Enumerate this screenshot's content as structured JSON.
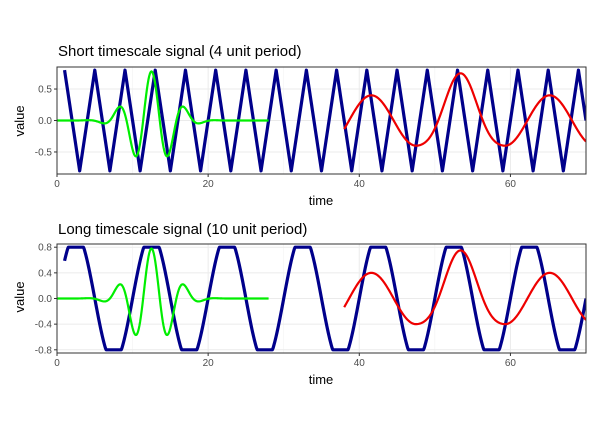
{
  "chart_data": [
    {
      "type": "line",
      "title": "Short timescale signal (4 unit period)",
      "xlabel": "time",
      "ylabel": "value",
      "xlim": [
        0,
        70
      ],
      "ylim": [
        -0.85,
        0.85
      ],
      "xticks": [
        0,
        20,
        40,
        60
      ],
      "yticks": [
        -0.5,
        0.0,
        0.5
      ],
      "xtick_labels": [
        "0",
        "20",
        "40",
        "60"
      ],
      "ytick_labels": [
        "-0.5",
        "0.0",
        "0.5"
      ],
      "grid": true,
      "series": [
        {
          "color": "#00008b",
          "kind": "triangle",
          "period": 4,
          "amplitude": 0.8,
          "x_start": 1,
          "x_end": 70,
          "peak_at": 1
        },
        {
          "color": "#00ee00",
          "kind": "wave-packet",
          "center": 12.5,
          "period": 4.4,
          "amplitude": 0.78,
          "width": 3.8,
          "x_start": 0,
          "x_end": 28
        },
        {
          "color": "#ee0000",
          "kind": "sine",
          "period": 11.8,
          "amplitude": 0.4,
          "x_start": 38,
          "x_end": 70,
          "peak_at": 41.6,
          "large_peak_at": 53.4,
          "large_amplitude": 0.75
        }
      ]
    },
    {
      "type": "line",
      "title": "Long timescale signal (10 unit period)",
      "xlabel": "time",
      "ylabel": "value",
      "xlim": [
        0,
        70
      ],
      "ylim": [
        -0.85,
        0.85
      ],
      "xticks": [
        0,
        20,
        40,
        60
      ],
      "yticks": [
        -0.8,
        -0.4,
        0.0,
        0.4,
        0.8
      ],
      "xtick_labels": [
        "0",
        "20",
        "40",
        "60"
      ],
      "ytick_labels": [
        "-0.8",
        "-0.4",
        "0.0",
        "0.4",
        "0.8"
      ],
      "grid": true,
      "series": [
        {
          "color": "#00008b",
          "kind": "clipped-sine",
          "period": 10,
          "amplitude": 0.8,
          "x_start": 1,
          "x_end": 70,
          "peak_at": 2.5
        },
        {
          "color": "#00ee00",
          "kind": "wave-packet",
          "center": 12.5,
          "period": 4.4,
          "amplitude": 0.78,
          "width": 3.8,
          "x_start": 0,
          "x_end": 28
        },
        {
          "color": "#ee0000",
          "kind": "sine",
          "period": 11.8,
          "amplitude": 0.4,
          "x_start": 38,
          "x_end": 70,
          "peak_at": 41.6,
          "large_peak_at": 53.4,
          "large_amplitude": 0.75
        }
      ]
    }
  ]
}
